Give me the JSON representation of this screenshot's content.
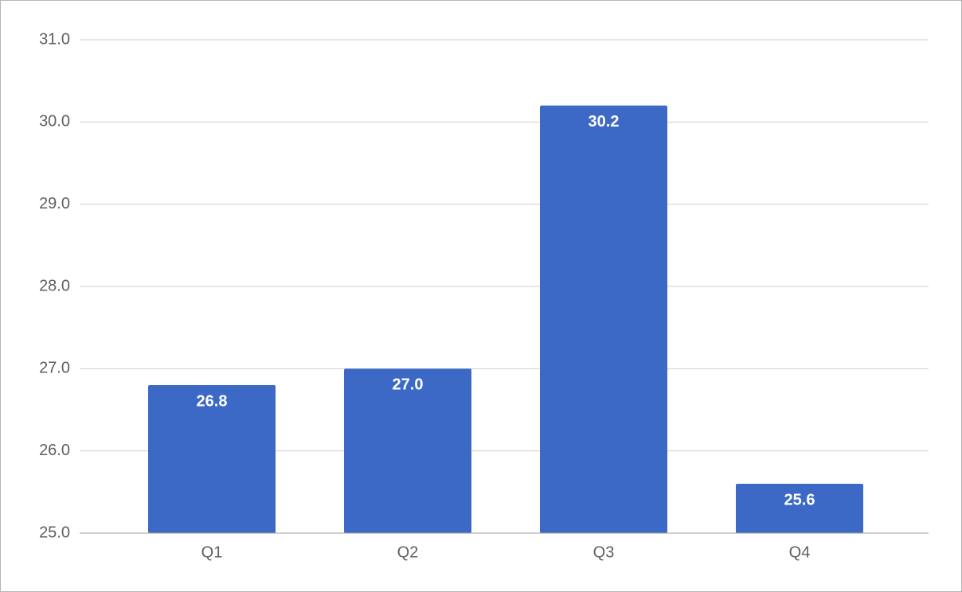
{
  "chart_data": {
    "type": "bar",
    "categories": [
      "Q1",
      "Q2",
      "Q3",
      "Q4"
    ],
    "values": [
      26.8,
      27.0,
      30.2,
      25.6
    ],
    "value_labels": [
      "26.8",
      "27.0",
      "30.2",
      "25.6"
    ],
    "color": "#3c69c6",
    "ylim": [
      25,
      31
    ],
    "yticks": [
      {
        "value": 25,
        "label": "25.0"
      },
      {
        "value": 26,
        "label": "26.0"
      },
      {
        "value": 27,
        "label": "27.0"
      },
      {
        "value": 28,
        "label": "28.0"
      },
      {
        "value": 29,
        "label": "29.0"
      },
      {
        "value": 30,
        "label": "30.0"
      },
      {
        "value": 31,
        "label": "31.0"
      }
    ],
    "grid": true
  }
}
